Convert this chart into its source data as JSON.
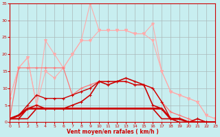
{
  "x": [
    0,
    1,
    2,
    3,
    4,
    5,
    6,
    7,
    8,
    9,
    10,
    11,
    12,
    13,
    14,
    15,
    16,
    17,
    18,
    19,
    20,
    21,
    22,
    23
  ],
  "line_pink1": [
    7,
    16,
    19,
    5,
    24,
    20,
    16,
    20,
    24,
    35,
    27,
    27,
    27,
    27,
    26,
    26,
    29,
    15,
    9,
    8,
    7,
    6,
    2,
    1
  ],
  "line_pink2": [
    7,
    16,
    19,
    5,
    15,
    13,
    16,
    20,
    24,
    24,
    27,
    27,
    27,
    27,
    26,
    26,
    24,
    15,
    9,
    8,
    7,
    6,
    2,
    1
  ],
  "line_medred": [
    1,
    16,
    16,
    16,
    16,
    16,
    16,
    8,
    10,
    11,
    12,
    12,
    12,
    12,
    11,
    11,
    10,
    6,
    3,
    2,
    1,
    0,
    0,
    0
  ],
  "line_red1": [
    1,
    2,
    5,
    8,
    7,
    7,
    7,
    8,
    9,
    10,
    12,
    12,
    12,
    12,
    11,
    11,
    10,
    6,
    1,
    1,
    0,
    0,
    0,
    0
  ],
  "line_red2": [
    1,
    1,
    4,
    5,
    4,
    4,
    4,
    5,
    6,
    8,
    12,
    11,
    12,
    13,
    12,
    11,
    5,
    4,
    1,
    1,
    0,
    1,
    0,
    0
  ],
  "line_flat1": [
    1,
    2,
    4,
    4,
    4,
    4,
    4,
    4,
    4,
    4,
    4,
    4,
    4,
    4,
    4,
    4,
    4,
    4,
    1,
    1,
    0,
    0,
    0,
    0
  ],
  "line_flat2": [
    1,
    1,
    1,
    4,
    4,
    4,
    4,
    4,
    4,
    4,
    4,
    4,
    4,
    4,
    4,
    4,
    4,
    1,
    1,
    0,
    0,
    0,
    0,
    0
  ],
  "bg_color": "#c8eef0",
  "grid_color": "#aab8b8",
  "col_light_pink": "#ffaaaa",
  "col_mid_red": "#ff7777",
  "col_dark_red": "#cc0000",
  "xlabel": "Vent moyen/en rafales ( km/h )",
  "ylim": [
    0,
    35
  ],
  "xlim": [
    0,
    23
  ],
  "yticks": [
    0,
    5,
    10,
    15,
    20,
    25,
    30,
    35
  ],
  "xticks": [
    0,
    1,
    2,
    3,
    4,
    5,
    6,
    7,
    8,
    9,
    10,
    11,
    12,
    13,
    14,
    15,
    16,
    17,
    18,
    19,
    20,
    21,
    22,
    23
  ]
}
